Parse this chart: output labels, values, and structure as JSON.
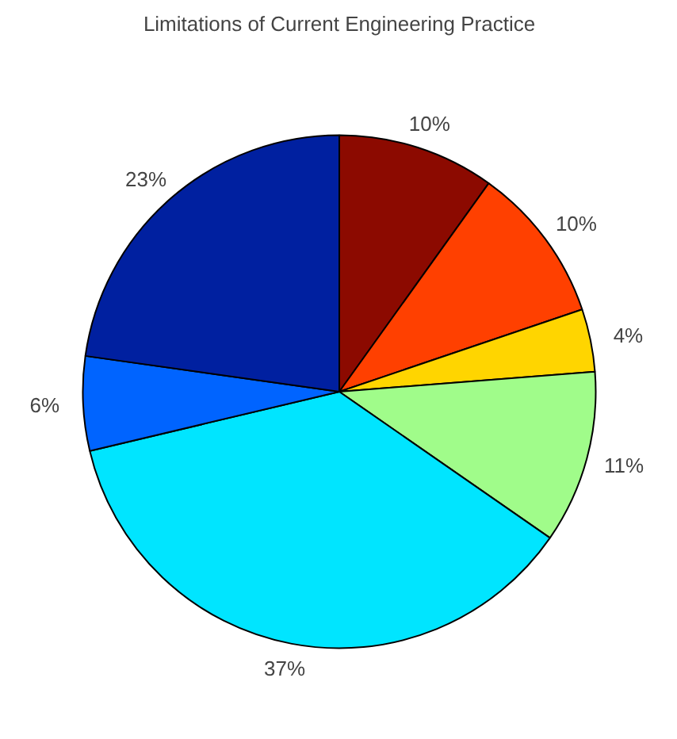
{
  "chart_data": {
    "type": "pie",
    "title": "Limitations of Current Engineering Practice",
    "categories": [
      null,
      null,
      null,
      null,
      null,
      null,
      null
    ],
    "values": [
      10,
      10,
      4,
      11,
      37,
      6,
      23
    ],
    "value_labels": [
      "10%",
      "10%",
      "4%",
      "11%",
      "37%",
      "6%",
      "23%"
    ],
    "colors": [
      "#8c0a00",
      "#ff4000",
      "#ffd500",
      "#a0fc8a",
      "#00e5ff",
      "#0064ff",
      "#0020a0"
    ]
  }
}
